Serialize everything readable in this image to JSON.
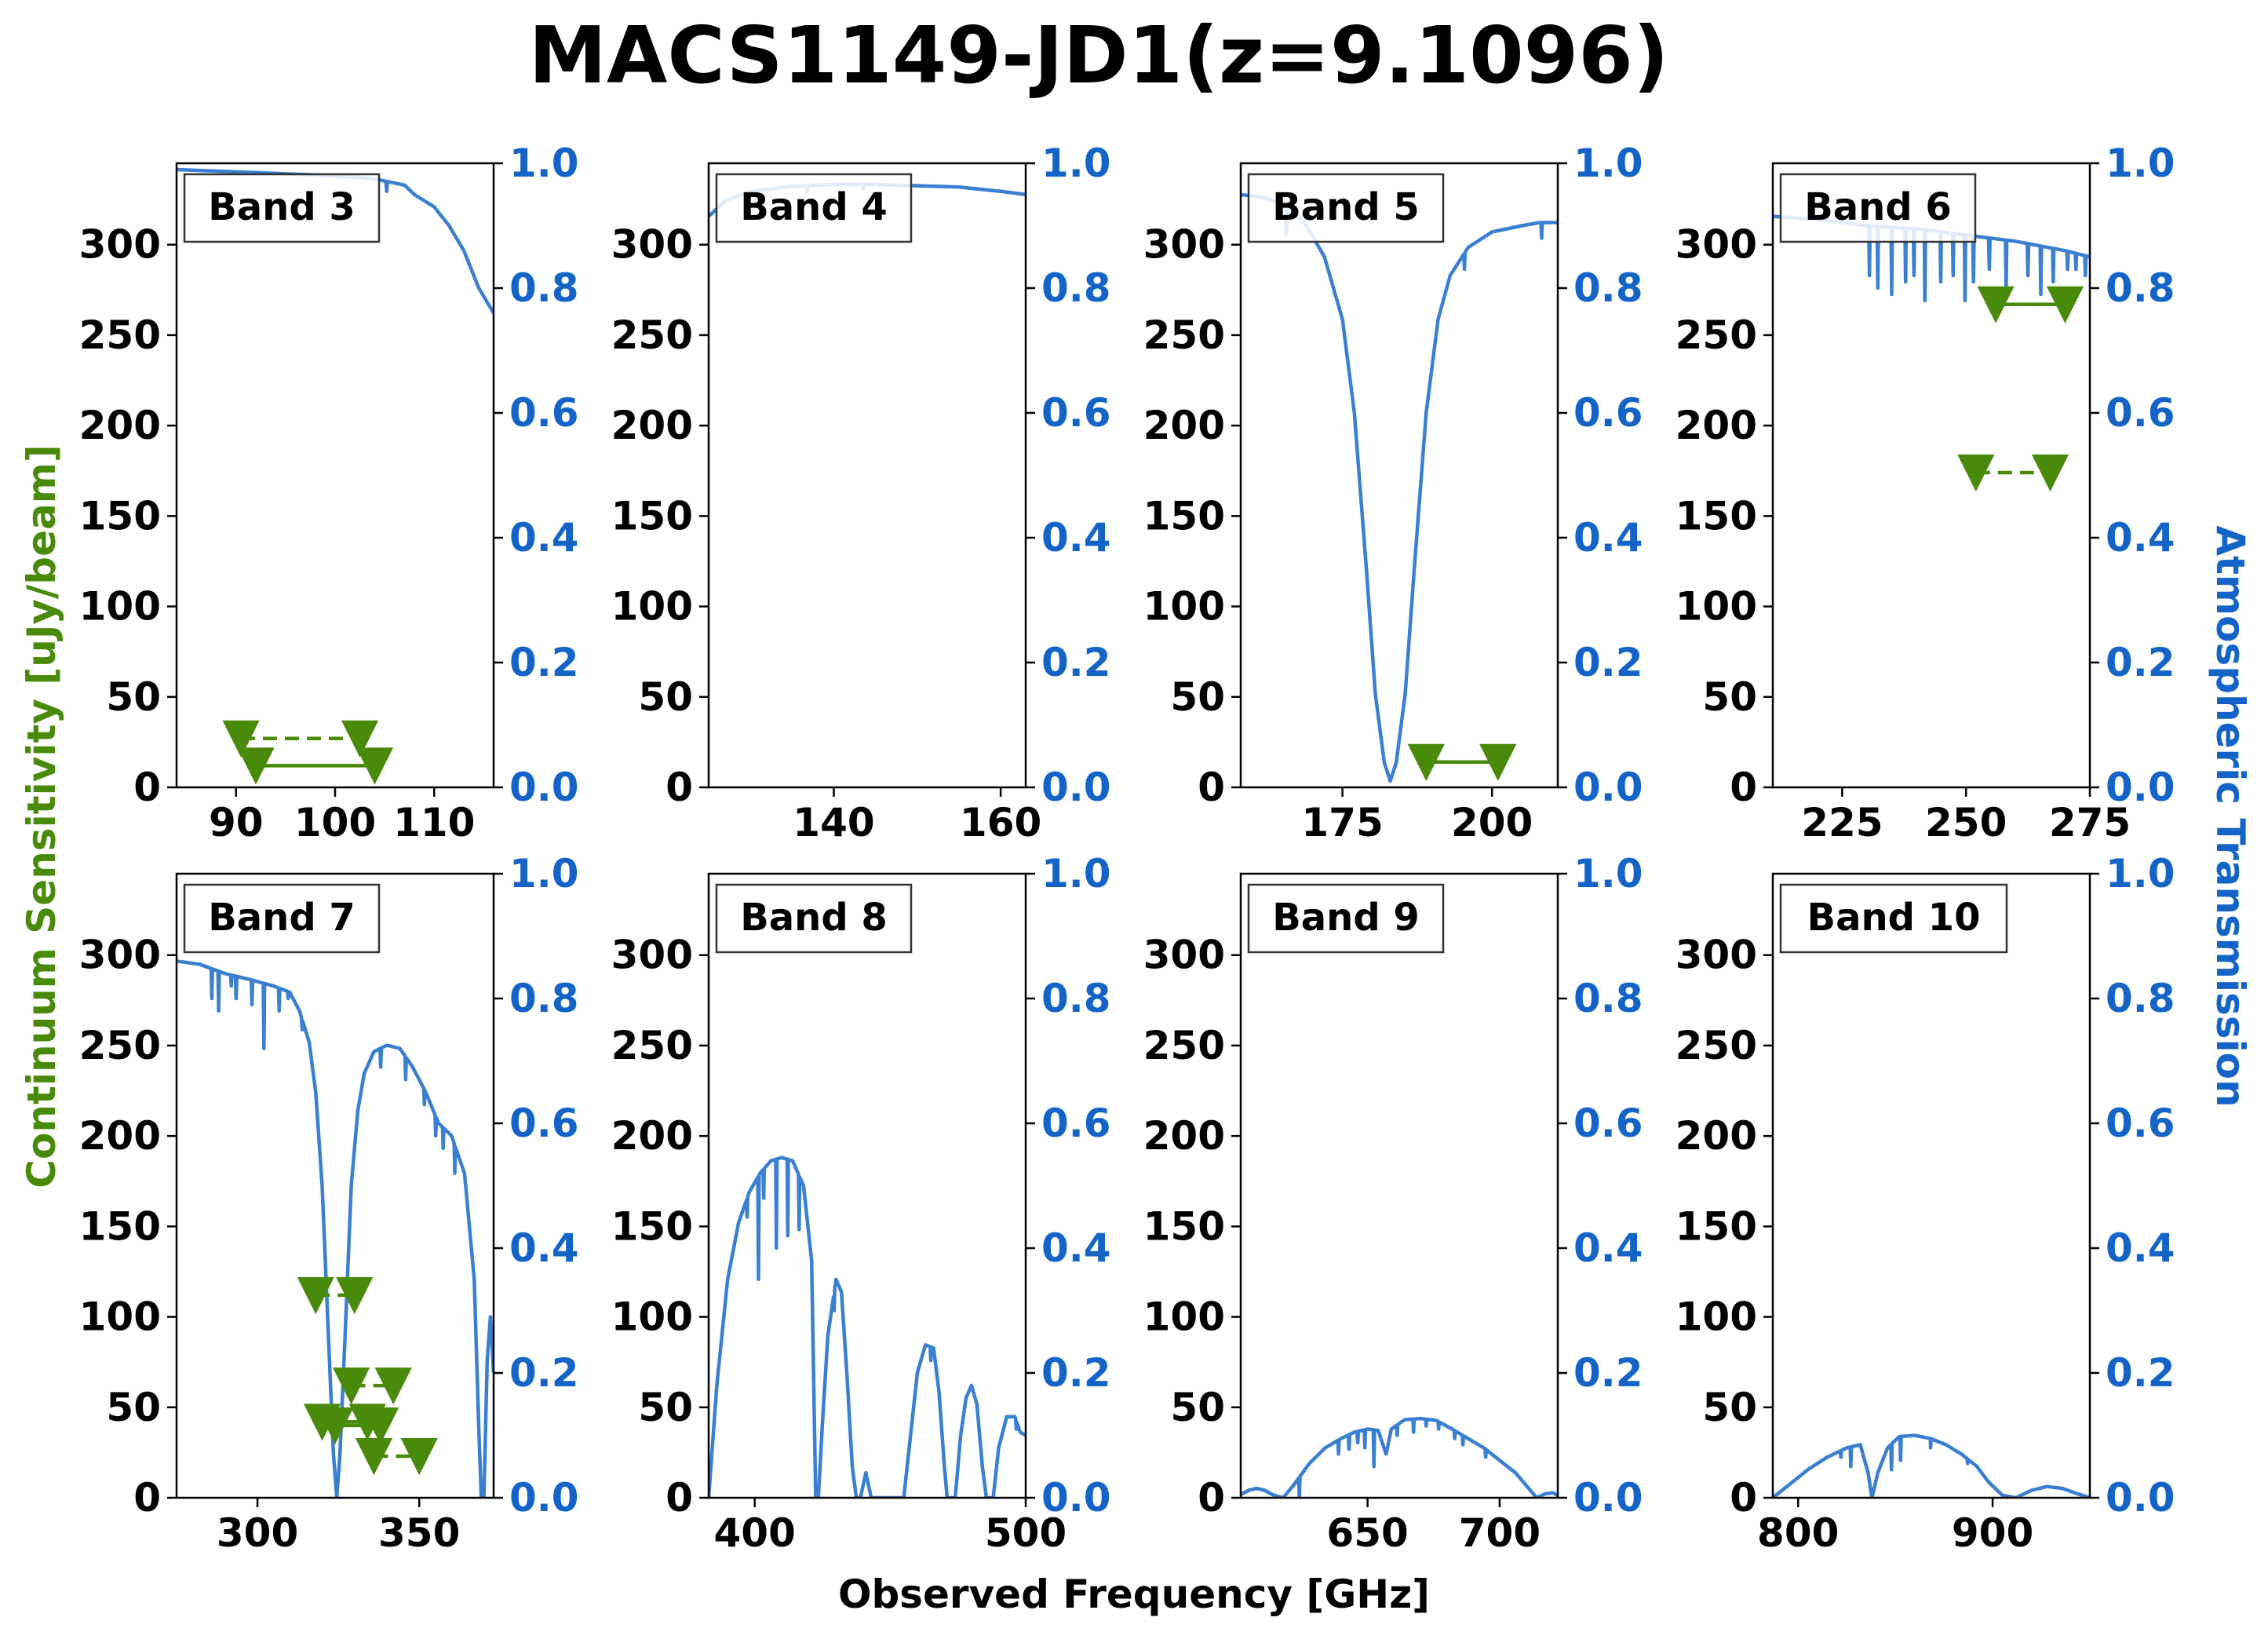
{
  "chart_data": {
    "type": "line",
    "title": "MACS1149-JD1(z=9.1096)",
    "xlabel": "Observed Frequency [GHz]",
    "ylabel_left": "Continuum Sensitivity [uJy/beam]",
    "ylabel_right": "Atmospheric Transmission",
    "colors": {
      "sensitivity": "#4a8a0a",
      "transmission": "#3a7fd0",
      "right_axis": "#1464c8",
      "text": "#000000"
    },
    "ylim_left": [
      0,
      345
    ],
    "yticks_left": [
      0,
      50,
      100,
      150,
      200,
      250,
      300
    ],
    "ylim_right": [
      0,
      1.0
    ],
    "yticks_right": [
      "0.0",
      "0.2",
      "0.4",
      "0.6",
      "0.8",
      "1.0"
    ],
    "panels": [
      {
        "label": "Band 3",
        "xlim": [
          84,
          116
        ],
        "xticks": [
          90,
          100,
          110
        ],
        "transmission": [
          [
            84,
            0.99
          ],
          [
            92,
            0.985
          ],
          [
            100,
            0.98
          ],
          [
            104,
            0.975
          ],
          [
            107,
            0.965
          ],
          [
            108,
            0.95
          ],
          [
            110,
            0.93
          ],
          [
            111.5,
            0.9
          ],
          [
            113,
            0.86
          ],
          [
            114.5,
            0.8
          ],
          [
            116,
            0.76
          ]
        ],
        "transmission_dips": [
          [
            105.2,
            0.955
          ]
        ],
        "sensitivity": [
          {
            "x": [
              90.5,
              102.5
            ],
            "y": 27,
            "style": "dashed"
          },
          {
            "x": [
              92,
              104
            ],
            "y": 12,
            "style": "solid"
          }
        ]
      },
      {
        "label": "Band 4",
        "xlim": [
          125,
          163
        ],
        "xticks": [
          140,
          160
        ],
        "transmission": [
          [
            125,
            0.915
          ],
          [
            127,
            0.94
          ],
          [
            130,
            0.955
          ],
          [
            135,
            0.963
          ],
          [
            140,
            0.966
          ],
          [
            145,
            0.966
          ],
          [
            150,
            0.964
          ],
          [
            155,
            0.962
          ],
          [
            160,
            0.955
          ],
          [
            163,
            0.95
          ]
        ],
        "transmission_dips": [
          [
            136.8,
            0.955
          ],
          [
            143.5,
            0.958
          ]
        ],
        "sensitivity": []
      },
      {
        "label": "Band 5",
        "xlim": [
          158,
          211
        ],
        "xticks": [
          175,
          200
        ],
        "transmission": [
          [
            158,
            0.95
          ],
          [
            162,
            0.945
          ],
          [
            166,
            0.93
          ],
          [
            169,
            0.9
          ],
          [
            172,
            0.85
          ],
          [
            175,
            0.75
          ],
          [
            177,
            0.6
          ],
          [
            179,
            0.35
          ],
          [
            180.5,
            0.15
          ],
          [
            182,
            0.04
          ],
          [
            183,
            0.01
          ],
          [
            184,
            0.04
          ],
          [
            185.5,
            0.15
          ],
          [
            187,
            0.35
          ],
          [
            189,
            0.6
          ],
          [
            191,
            0.75
          ],
          [
            193,
            0.82
          ],
          [
            196,
            0.865
          ],
          [
            200,
            0.89
          ],
          [
            205,
            0.9
          ],
          [
            208,
            0.905
          ],
          [
            211,
            0.905
          ]
        ],
        "transmission_dips": [
          [
            165.6,
            0.885
          ],
          [
            195.4,
            0.83
          ],
          [
            208.3,
            0.88
          ]
        ],
        "sensitivity": [
          {
            "x": [
              189,
              201
            ],
            "y": 14,
            "style": "solid"
          }
        ]
      },
      {
        "label": "Band 6",
        "xlim": [
          211,
          275
        ],
        "xticks": [
          225,
          250,
          275
        ],
        "transmission": [
          [
            211,
            0.915
          ],
          [
            220,
            0.91
          ],
          [
            230,
            0.9
          ],
          [
            240,
            0.895
          ],
          [
            250,
            0.885
          ],
          [
            260,
            0.875
          ],
          [
            270,
            0.86
          ],
          [
            275,
            0.85
          ]
        ],
        "transmission_dips": [
          [
            230.5,
            0.82
          ],
          [
            232.2,
            0.8
          ],
          [
            235,
            0.79
          ],
          [
            237.8,
            0.81
          ],
          [
            239.5,
            0.82
          ],
          [
            241.7,
            0.78
          ],
          [
            244.9,
            0.81
          ],
          [
            247.4,
            0.82
          ],
          [
            249.8,
            0.78
          ],
          [
            251.5,
            0.81
          ],
          [
            254.7,
            0.83
          ],
          [
            258.1,
            0.8
          ],
          [
            262.5,
            0.82
          ],
          [
            265.1,
            0.79
          ],
          [
            267.6,
            0.81
          ],
          [
            270.5,
            0.83
          ],
          [
            272.2,
            0.83
          ],
          [
            274.1,
            0.82
          ]
        ],
        "sensitivity": [
          {
            "x": [
              256,
              270
            ],
            "y": 267,
            "style": "solid"
          },
          {
            "x": [
              252,
              267
            ],
            "y": 174,
            "style": "dashed"
          }
        ]
      },
      {
        "label": "Band 7",
        "xlim": [
          275,
          373
        ],
        "xticks": [
          300,
          350
        ],
        "transmission": [
          [
            275,
            0.86
          ],
          [
            282,
            0.855
          ],
          [
            290,
            0.84
          ],
          [
            298,
            0.83
          ],
          [
            305,
            0.82
          ],
          [
            310,
            0.81
          ],
          [
            313,
            0.78
          ],
          [
            316,
            0.73
          ],
          [
            318,
            0.65
          ],
          [
            320,
            0.5
          ],
          [
            322,
            0.25
          ],
          [
            323.5,
            0.07
          ],
          [
            324.5,
            0.0
          ],
          [
            325.5,
            0.07
          ],
          [
            327,
            0.25
          ],
          [
            329,
            0.5
          ],
          [
            331,
            0.62
          ],
          [
            333,
            0.68
          ],
          [
            336,
            0.715
          ],
          [
            340,
            0.725
          ],
          [
            344,
            0.72
          ],
          [
            348,
            0.69
          ],
          [
            352,
            0.65
          ],
          [
            356,
            0.6
          ],
          [
            360,
            0.58
          ],
          [
            364,
            0.52
          ],
          [
            367,
            0.35
          ],
          [
            368.5,
            0.1
          ],
          [
            369.2,
            0.0
          ],
          [
            370,
            0.0
          ],
          [
            371,
            0.22
          ],
          [
            372,
            0.29
          ],
          [
            373,
            0.2
          ]
        ],
        "transmission_dips": [
          [
            285.9,
            0.8
          ],
          [
            288,
            0.78
          ],
          [
            291.9,
            0.82
          ],
          [
            293.4,
            0.8
          ],
          [
            298.3,
            0.79
          ],
          [
            302,
            0.72
          ],
          [
            306.7,
            0.78
          ],
          [
            309.5,
            0.8
          ],
          [
            313.8,
            0.75
          ],
          [
            338.1,
            0.69
          ],
          [
            345.8,
            0.67
          ],
          [
            351.6,
            0.63
          ],
          [
            355.1,
            0.58
          ],
          [
            357.4,
            0.56
          ],
          [
            361,
            0.52
          ]
        ],
        "sensitivity": [
          {
            "x": [
              318,
              330
            ],
            "y": 112,
            "style": "dashed"
          },
          {
            "x": [
              329,
              342
            ],
            "y": 62,
            "style": "dashed"
          },
          {
            "x": [
              320,
              334
            ],
            "y": 42,
            "style": "solid"
          },
          {
            "x": [
              324,
              338
            ],
            "y": 40,
            "style": "solid"
          },
          {
            "x": [
              336,
              350
            ],
            "y": 23,
            "style": "dashed"
          }
        ]
      },
      {
        "label": "Band 8",
        "xlim": [
          383,
          500
        ],
        "xticks": [
          400,
          500
        ],
        "transmission": [
          [
            383,
            0.0
          ],
          [
            386,
            0.18
          ],
          [
            390,
            0.35
          ],
          [
            394,
            0.44
          ],
          [
            398,
            0.49
          ],
          [
            402,
            0.52
          ],
          [
            406,
            0.54
          ],
          [
            410,
            0.545
          ],
          [
            414,
            0.54
          ],
          [
            418,
            0.5
          ],
          [
            421,
            0.38
          ],
          [
            422.5,
            0.0
          ],
          [
            423.5,
            0.0
          ],
          [
            425,
            0.12
          ],
          [
            427,
            0.26
          ],
          [
            430,
            0.35
          ],
          [
            432,
            0.33
          ],
          [
            434,
            0.2
          ],
          [
            436,
            0.05
          ],
          [
            437.5,
            0.0
          ],
          [
            439,
            0.0
          ],
          [
            441,
            0.04
          ],
          [
            443,
            0.0
          ],
          [
            455,
            0.0
          ],
          [
            458,
            0.12
          ],
          [
            460,
            0.2
          ],
          [
            463,
            0.245
          ],
          [
            466,
            0.24
          ],
          [
            468,
            0.17
          ],
          [
            470,
            0.05
          ],
          [
            471,
            0.0
          ],
          [
            474,
            0.0
          ],
          [
            476,
            0.1
          ],
          [
            478,
            0.16
          ],
          [
            480,
            0.18
          ],
          [
            482,
            0.15
          ],
          [
            484,
            0.05
          ],
          [
            485.5,
            0.0
          ],
          [
            488,
            0.0
          ],
          [
            490,
            0.08
          ],
          [
            493,
            0.13
          ],
          [
            496,
            0.13
          ],
          [
            498,
            0.105
          ],
          [
            500,
            0.1
          ]
        ],
        "transmission_dips": [
          [
            397.2,
            0.45
          ],
          [
            401.4,
            0.35
          ],
          [
            403.3,
            0.48
          ],
          [
            408,
            0.4
          ],
          [
            412.2,
            0.42
          ],
          [
            416.4,
            0.43
          ],
          [
            429.3,
            0.3
          ],
          [
            465,
            0.22
          ],
          [
            496.5,
            0.11
          ]
        ],
        "sensitivity": []
      },
      {
        "label": "Band 9",
        "xlim": [
          602,
          722
        ],
        "xticks": [
          650,
          700
        ],
        "transmission": [
          [
            602,
            0.005
          ],
          [
            605,
            0.012
          ],
          [
            608,
            0.015
          ],
          [
            611,
            0.012
          ],
          [
            614,
            0.005
          ],
          [
            618,
            0.0
          ],
          [
            622,
            0.02
          ],
          [
            628,
            0.055
          ],
          [
            634,
            0.08
          ],
          [
            640,
            0.095
          ],
          [
            645,
            0.105
          ],
          [
            650,
            0.11
          ],
          [
            654,
            0.108
          ],
          [
            657,
            0.07
          ],
          [
            659,
            0.11
          ],
          [
            664,
            0.125
          ],
          [
            670,
            0.127
          ],
          [
            676,
            0.124
          ],
          [
            682,
            0.11
          ],
          [
            688,
            0.095
          ],
          [
            694,
            0.08
          ],
          [
            700,
            0.06
          ],
          [
            706,
            0.04
          ],
          [
            711,
            0.015
          ],
          [
            714,
            0.0
          ],
          [
            717,
            0.006
          ],
          [
            720,
            0.008
          ],
          [
            722,
            0.004
          ]
        ],
        "transmission_dips": [
          [
            624.2,
            0.0
          ],
          [
            639,
            0.07
          ],
          [
            643,
            0.078
          ],
          [
            646.3,
            0.088
          ],
          [
            649,
            0.08
          ],
          [
            652.4,
            0.05
          ],
          [
            661.2,
            0.1
          ],
          [
            667.4,
            0.105
          ],
          [
            672.2,
            0.115
          ],
          [
            676.9,
            0.11
          ],
          [
            683,
            0.095
          ],
          [
            686.1,
            0.085
          ],
          [
            694.7,
            0.065
          ]
        ],
        "sensitivity": []
      },
      {
        "label": "Band 10",
        "xlim": [
          787,
          950
        ],
        "xticks": [
          800,
          900
        ],
        "transmission": [
          [
            787,
            0.0
          ],
          [
            795,
            0.02
          ],
          [
            805,
            0.045
          ],
          [
            815,
            0.065
          ],
          [
            825,
            0.08
          ],
          [
            832,
            0.085
          ],
          [
            836,
            0.04
          ],
          [
            838,
            0.0
          ],
          [
            841,
            0.04
          ],
          [
            846,
            0.08
          ],
          [
            852,
            0.098
          ],
          [
            860,
            0.1
          ],
          [
            868,
            0.095
          ],
          [
            876,
            0.085
          ],
          [
            884,
            0.07
          ],
          [
            892,
            0.05
          ],
          [
            898,
            0.025
          ],
          [
            905,
            0.004
          ],
          [
            912,
            0.0
          ],
          [
            920,
            0.012
          ],
          [
            928,
            0.018
          ],
          [
            936,
            0.015
          ],
          [
            944,
            0.006
          ],
          [
            950,
            0.0
          ]
        ],
        "transmission_dips": [
          [
            822,
            0.065
          ],
          [
            827.1,
            0.05
          ],
          [
            848,
            0.045
          ],
          [
            852.7,
            0.06
          ],
          [
            868.1,
            0.08
          ],
          [
            887.2,
            0.055
          ]
        ],
        "sensitivity": []
      }
    ]
  }
}
